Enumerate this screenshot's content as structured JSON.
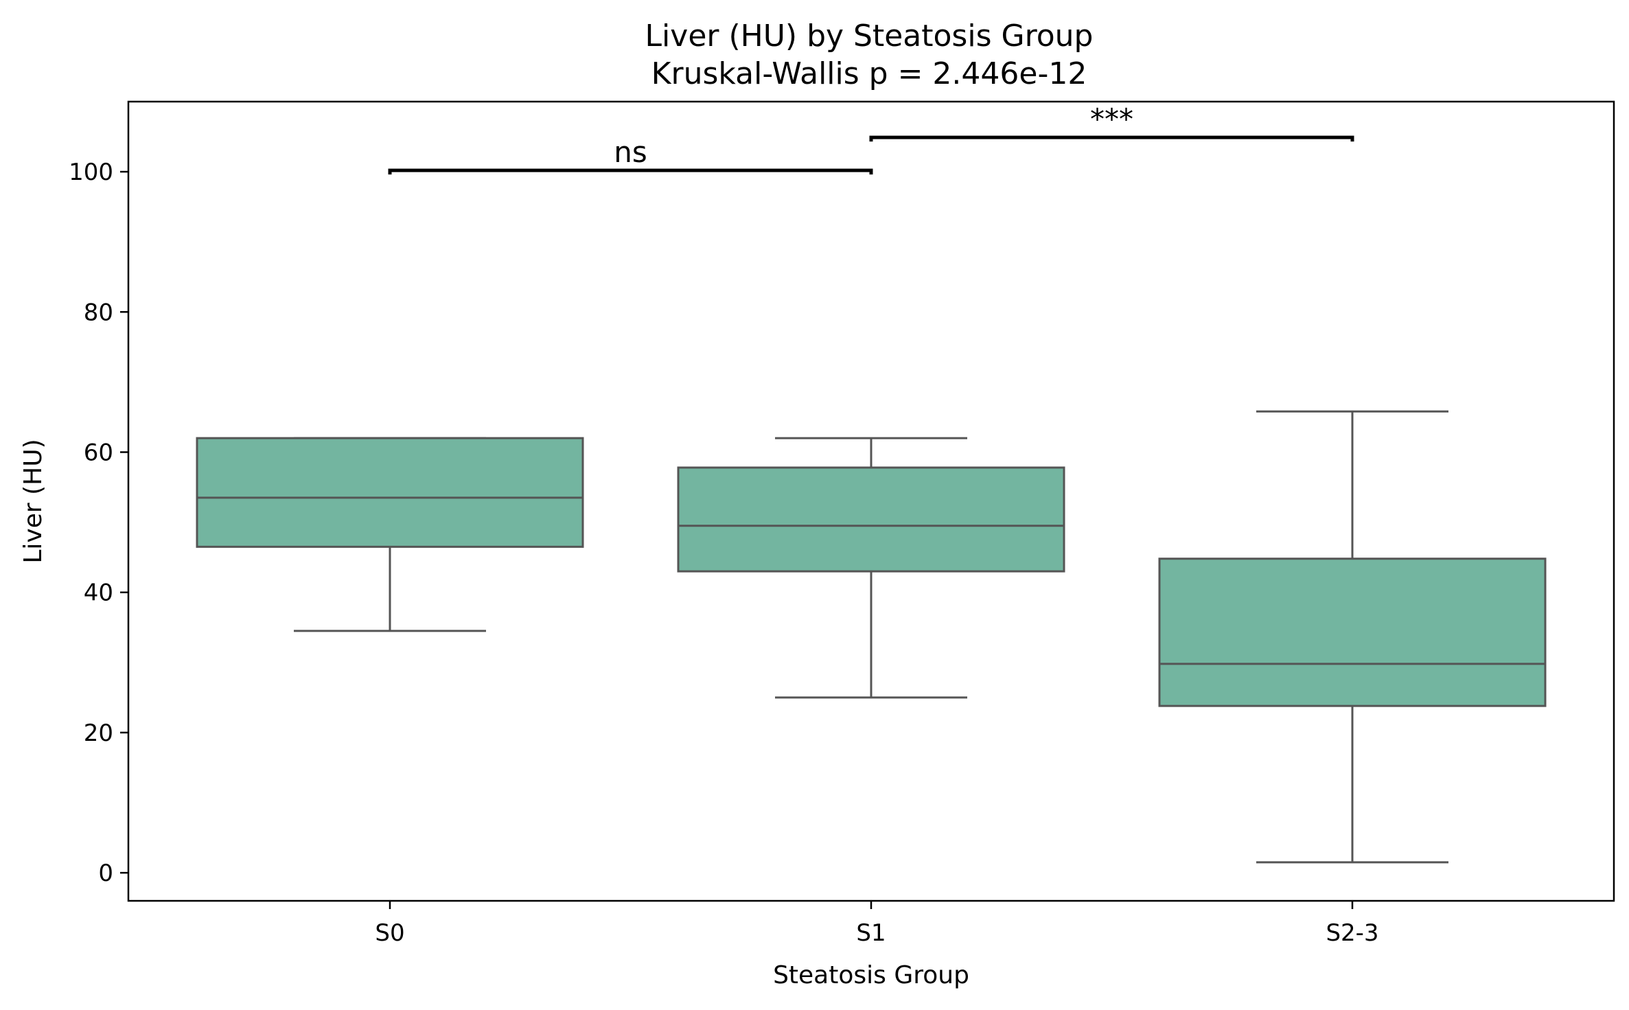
{
  "chart_data": {
    "type": "box",
    "title": "Liver (HU) by Steatosis Group",
    "subtitle": "Kruskal-Wallis p = 2.446e-12",
    "xlabel": "Steatosis Group",
    "ylabel": "Liver (HU)",
    "ylim": [
      -4,
      110
    ],
    "yticks": [
      0,
      20,
      40,
      60,
      80,
      100
    ],
    "grid": false,
    "box_color": "#73b5a0",
    "edge_color": "#555555",
    "categories": [
      "S0",
      "S1",
      "S2-3"
    ],
    "boxes": [
      {
        "category": "S0",
        "whisker_low": 34.5,
        "q1": 46.5,
        "median": 53.5,
        "q3": 62.0,
        "whisker_high": 62.0
      },
      {
        "category": "S1",
        "whisker_low": 25.0,
        "q1": 43.0,
        "median": 49.5,
        "q3": 57.8,
        "whisker_high": 62.0
      },
      {
        "category": "S2-3",
        "whisker_low": 1.5,
        "q1": 23.8,
        "median": 29.8,
        "q3": 44.8,
        "whisker_high": 65.8
      }
    ],
    "comparisons": [
      {
        "from": "S0",
        "to": "S1",
        "y": 100.2,
        "label": "ns"
      },
      {
        "from": "S1",
        "to": "S2-3",
        "y": 104.9,
        "label": "***"
      }
    ]
  }
}
